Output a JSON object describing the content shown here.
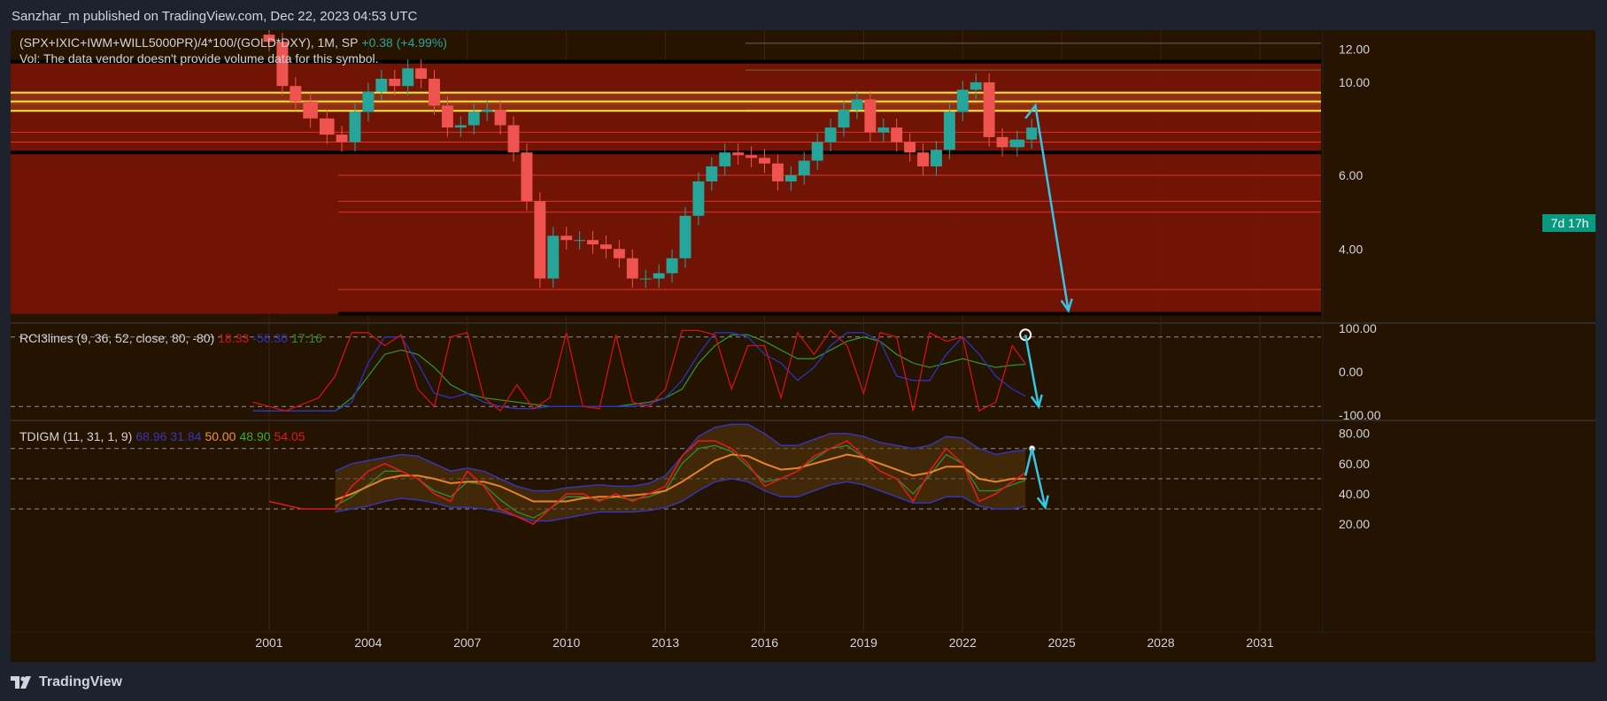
{
  "header": {
    "published_by": "Sanzhar_m published on TradingView.com, Dec 22, 2023 04:53 UTC"
  },
  "footer": {
    "brand": "TradingView"
  },
  "main_pane": {
    "symbol": "(SPX+IXIC+IWM+WILL5000PR)/4*100/(GOLD*DXY), 1M, SP",
    "change": "+0.38 (+4.99%)",
    "vol_note": "Vol: The data vendor doesn't provide volume data for this symbol.",
    "countdown": "7d 17h",
    "price_ticks": [
      "12.00",
      "10.00",
      "6.00",
      "4.00"
    ]
  },
  "rci_pane": {
    "title": "RCI3lines (9, 36, 52, close, 80, -80)",
    "v1": "18.33",
    "v2": "-56.30",
    "v3": "17.16",
    "ticks": [
      "100.00",
      "0.00",
      "-100.00"
    ]
  },
  "tdi_pane": {
    "title": "TDIGM (11, 31, 1, 9)",
    "v1": "68.96",
    "v2": "31.84",
    "v3": "50.00",
    "v4": "48.90",
    "v5": "54.05",
    "ticks": [
      "80.00",
      "60.00",
      "40.00",
      "20.00"
    ]
  },
  "time_axis": [
    "2001",
    "2004",
    "2007",
    "2010",
    "2013",
    "2016",
    "2019",
    "2022",
    "2025",
    "2028",
    "2031"
  ],
  "colors": {
    "up": "#26a69a",
    "down": "#ef5350",
    "zone": "#7a1405",
    "yellow": "#f5e642",
    "arrow": "#33c6e6",
    "rci_fast": "#d31212",
    "rci_mid": "#2a33c4",
    "rci_slow": "#2f8f2f",
    "tdi_signal": "#e8832a",
    "tdi_price": "#e01b1b",
    "tdi_band": "#3436b8"
  },
  "chart_data": [
    {
      "type": "candlestick",
      "title": "(SPX+IXIC+IWM+WILL5000PR)/4*100/(GOLD*DXY), 1M, SP",
      "ylim": [
        2.7,
        13.2
      ],
      "scale": "log",
      "x": [
        2000.8,
        2001.2,
        2001.6,
        2002.0,
        2002.5,
        2003.0,
        2003.4,
        2003.8,
        2004.2,
        2004.6,
        2005.0,
        2005.4,
        2005.8,
        2006.2,
        2006.6,
        2007.0,
        2007.4,
        2007.8,
        2008.2,
        2008.6,
        2009.0,
        2009.4,
        2009.8,
        2010.2,
        2010.6,
        2011.0,
        2011.4,
        2011.8,
        2012.2,
        2012.6,
        2013.0,
        2013.4,
        2013.8,
        2014.2,
        2014.6,
        2015.0,
        2015.4,
        2015.8,
        2016.2,
        2016.6,
        2017.0,
        2017.4,
        2017.8,
        2018.2,
        2018.6,
        2019.0,
        2019.4,
        2019.8,
        2020.2,
        2020.6,
        2021.0,
        2021.4,
        2021.8,
        2022.2,
        2022.6,
        2023.0,
        2023.4,
        2023.9
      ],
      "close": [
        12.5,
        9.8,
        9.0,
        8.2,
        7.5,
        7.2,
        8.5,
        9.5,
        10.2,
        9.8,
        10.8,
        10.2,
        8.8,
        7.8,
        7.9,
        8.5,
        8.6,
        7.9,
        6.8,
        5.2,
        3.4,
        4.3,
        4.2,
        4.2,
        4.1,
        4.0,
        3.8,
        3.4,
        3.4,
        3.5,
        3.8,
        4.8,
        5.8,
        6.3,
        6.8,
        6.7,
        6.6,
        6.4,
        5.8,
        6.0,
        6.5,
        7.2,
        7.8,
        8.6,
        9.1,
        7.6,
        7.8,
        7.2,
        6.8,
        6.3,
        6.9,
        8.5,
        9.6,
        10.0,
        7.4,
        7.0,
        7.3,
        7.8
      ],
      "horizontal_levels": [
        12.4,
        11.2,
        10.7,
        9.4,
        8.9,
        8.6,
        7.6,
        7.2,
        6.8,
        6.0,
        5.2,
        4.9,
        3.2,
        2.8
      ],
      "yellow_band": [
        8.55,
        9.45
      ],
      "arrow_path": [
        [
          2023.9,
          8.2
        ],
        [
          2024.2,
          8.8
        ],
        [
          2025.2,
          2.85
        ]
      ]
    },
    {
      "type": "line",
      "title": "RCI3lines (9, 36, 52, close, 80, -80)",
      "ylim": [
        -110,
        110
      ],
      "levels": [
        80,
        -80
      ],
      "x": [
        2000.5,
        2001.5,
        2002.5,
        2003.0,
        2003.5,
        2004.0,
        2004.5,
        2005.0,
        2005.5,
        2006.0,
        2006.5,
        2007.0,
        2007.5,
        2008.0,
        2008.5,
        2009.0,
        2009.5,
        2010.0,
        2010.5,
        2011.0,
        2011.5,
        2012.0,
        2012.5,
        2013.0,
        2013.5,
        2014.0,
        2014.5,
        2015.0,
        2015.5,
        2016.0,
        2016.5,
        2017.0,
        2017.5,
        2018.0,
        2018.5,
        2019.0,
        2019.5,
        2020.0,
        2020.5,
        2021.0,
        2021.5,
        2022.0,
        2022.5,
        2023.0,
        2023.5,
        2023.9
      ],
      "series": [
        {
          "values": [
            -70,
            -90,
            -60,
            -10,
            90,
            90,
            60,
            85,
            -40,
            -80,
            80,
            90,
            -60,
            -90,
            -30,
            -85,
            -60,
            90,
            -80,
            -85,
            85,
            -70,
            -80,
            -40,
            95,
            95,
            85,
            -40,
            60,
            60,
            -60,
            90,
            40,
            95,
            60,
            -50,
            90,
            80,
            -90,
            90,
            70,
            80,
            -90,
            -70,
            60,
            18.33
          ]
        },
        {
          "values": [
            -90,
            -90,
            -90,
            -90,
            -70,
            20,
            80,
            80,
            20,
            -50,
            -60,
            -50,
            -70,
            -80,
            -85,
            -85,
            -80,
            -80,
            -80,
            -80,
            -80,
            -80,
            -75,
            -60,
            -20,
            40,
            90,
            90,
            80,
            40,
            20,
            -20,
            10,
            60,
            90,
            90,
            70,
            -10,
            -20,
            -20,
            40,
            80,
            40,
            -10,
            -40,
            -56.3
          ]
        },
        {
          "values": [
            -90,
            -90,
            -90,
            -90,
            -60,
            -10,
            40,
            50,
            40,
            10,
            -30,
            -50,
            -60,
            -65,
            -70,
            -75,
            -80,
            -80,
            -80,
            -80,
            -80,
            -75,
            -70,
            -60,
            -40,
            20,
            60,
            85,
            85,
            70,
            50,
            30,
            30,
            50,
            70,
            80,
            70,
            40,
            20,
            10,
            20,
            30,
            20,
            10,
            15,
            17.16
          ]
        }
      ],
      "arrow_path": [
        [
          2023.9,
          85
        ],
        [
          2024.3,
          -80
        ]
      ]
    },
    {
      "type": "line",
      "title": "TDIGM (11, 31, 1, 9)",
      "ylim": [
        13,
        88
      ],
      "levels": [
        70,
        50,
        30
      ],
      "x": [
        2001.0,
        2002.0,
        2003.0,
        2003.5,
        2004.0,
        2004.5,
        2005.0,
        2005.5,
        2006.0,
        2006.5,
        2007.0,
        2007.5,
        2008.0,
        2008.5,
        2009.0,
        2009.5,
        2010.0,
        2010.5,
        2011.0,
        2011.5,
        2012.0,
        2012.5,
        2013.0,
        2013.5,
        2014.0,
        2014.5,
        2015.0,
        2015.5,
        2016.0,
        2016.5,
        2017.0,
        2017.5,
        2018.0,
        2018.5,
        2019.0,
        2019.5,
        2020.0,
        2020.5,
        2021.0,
        2021.5,
        2022.0,
        2022.5,
        2023.0,
        2023.5,
        2023.9
      ],
      "series": [
        {
          "values": [
            35,
            30,
            30,
            45,
            55,
            60,
            55,
            50,
            40,
            35,
            55,
            45,
            30,
            25,
            20,
            30,
            40,
            40,
            35,
            40,
            35,
            40,
            45,
            65,
            75,
            75,
            70,
            60,
            45,
            50,
            55,
            65,
            70,
            75,
            65,
            55,
            50,
            35,
            55,
            70,
            60,
            35,
            40,
            48,
            54.05
          ]
        },
        {
          "values": [
            null,
            null,
            36,
            40,
            45,
            50,
            52,
            52,
            50,
            47,
            48,
            48,
            45,
            40,
            35,
            35,
            35,
            37,
            38,
            38,
            39,
            40,
            42,
            48,
            55,
            62,
            66,
            65,
            60,
            56,
            57,
            60,
            63,
            66,
            64,
            60,
            56,
            52,
            54,
            58,
            58,
            50,
            48,
            50,
            50.0
          ]
        },
        {
          "values": [
            null,
            null,
            32,
            38,
            46,
            55,
            55,
            50,
            42,
            38,
            48,
            46,
            36,
            28,
            24,
            30,
            38,
            38,
            36,
            38,
            36,
            38,
            42,
            60,
            70,
            72,
            68,
            58,
            48,
            50,
            55,
            63,
            70,
            72,
            64,
            55,
            50,
            40,
            52,
            66,
            60,
            42,
            42,
            46,
            48.9
          ]
        },
        {
          "values": [
            null,
            null,
            55,
            60,
            62,
            64,
            66,
            65,
            60,
            55,
            57,
            55,
            50,
            45,
            42,
            42,
            44,
            45,
            46,
            45,
            45,
            47,
            52,
            65,
            78,
            84,
            86,
            86,
            80,
            72,
            72,
            76,
            80,
            80,
            78,
            74,
            72,
            70,
            72,
            78,
            77,
            70,
            66,
            68,
            68.96
          ]
        },
        {
          "values": [
            null,
            null,
            28,
            30,
            32,
            35,
            37,
            36,
            34,
            31,
            31,
            30,
            28,
            25,
            22,
            22,
            24,
            26,
            28,
            28,
            28,
            29,
            31,
            35,
            42,
            48,
            50,
            48,
            42,
            38,
            38,
            42,
            46,
            48,
            46,
            42,
            38,
            34,
            34,
            38,
            38,
            32,
            30,
            30,
            31.84
          ]
        }
      ],
      "arrow_path": [
        [
          2023.9,
          52
        ],
        [
          2024.1,
          70
        ],
        [
          2024.5,
          31
        ]
      ]
    }
  ]
}
